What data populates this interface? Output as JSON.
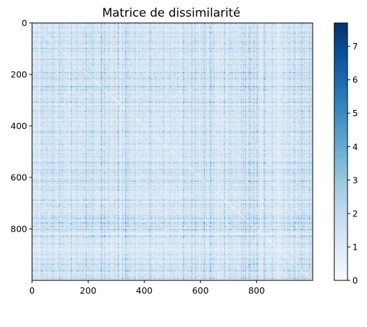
{
  "chart_data": {
    "type": "heatmap",
    "title": "Matrice de dissimilarité",
    "xlabel": "",
    "ylabel": "",
    "matrix_size": 1000,
    "symmetric": true,
    "diagonal_value": 0,
    "colormap": "Blues",
    "colormap_low": "#f7fbff",
    "colormap_high": "#08306b",
    "xlim": [
      0,
      1000
    ],
    "ylim": [
      1000,
      0
    ],
    "x_ticks": [
      0,
      200,
      400,
      600,
      800
    ],
    "x_tick_labels": [
      "0",
      "200",
      "400",
      "600",
      "800"
    ],
    "y_ticks": [
      0,
      200,
      400,
      600,
      800
    ],
    "y_tick_labels": [
      "0",
      "200",
      "400",
      "600",
      "800"
    ],
    "colorbar": {
      "min": 0,
      "max": 7.7,
      "ticks": [
        0,
        1,
        2,
        3,
        4,
        5,
        6,
        7
      ],
      "tick_labels": [
        "0",
        "1",
        "2",
        "3",
        "4",
        "5",
        "6",
        "7"
      ]
    },
    "grid": false
  }
}
